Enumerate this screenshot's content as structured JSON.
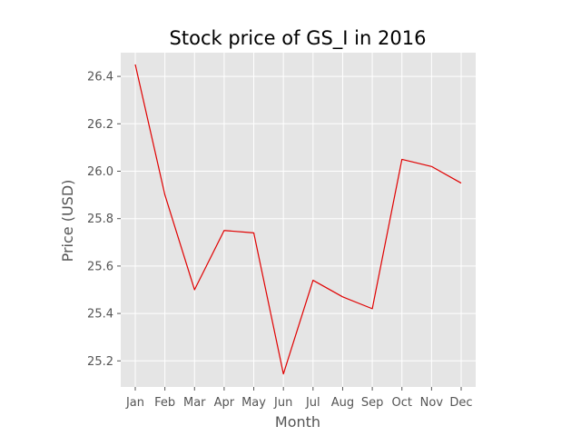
{
  "chart_data": {
    "type": "line",
    "title": "Stock price of GS_I in 2016",
    "xlabel": "Month",
    "ylabel": "Price (USD)",
    "categories": [
      "Jan",
      "Feb",
      "Mar",
      "Apr",
      "May",
      "Jun",
      "Jul",
      "Aug",
      "Sep",
      "Oct",
      "Nov",
      "Dec"
    ],
    "series": [
      {
        "values": [
          26.45,
          25.9,
          25.5,
          25.75,
          25.74,
          25.145,
          25.54,
          25.47,
          25.42,
          26.05,
          26.02,
          25.95
        ],
        "color": "#e00000"
      }
    ],
    "ylim": [
      25.09,
      26.5
    ],
    "yticks": [
      "25.2",
      "25.4",
      "25.6",
      "25.8",
      "26.0",
      "26.2",
      "26.4"
    ],
    "grid": true,
    "legend": "none",
    "style": {
      "plot_background": "#e5e5e5",
      "grid_color": "#ffffff",
      "tick_color": "#555555",
      "text_color": "#555555"
    }
  }
}
